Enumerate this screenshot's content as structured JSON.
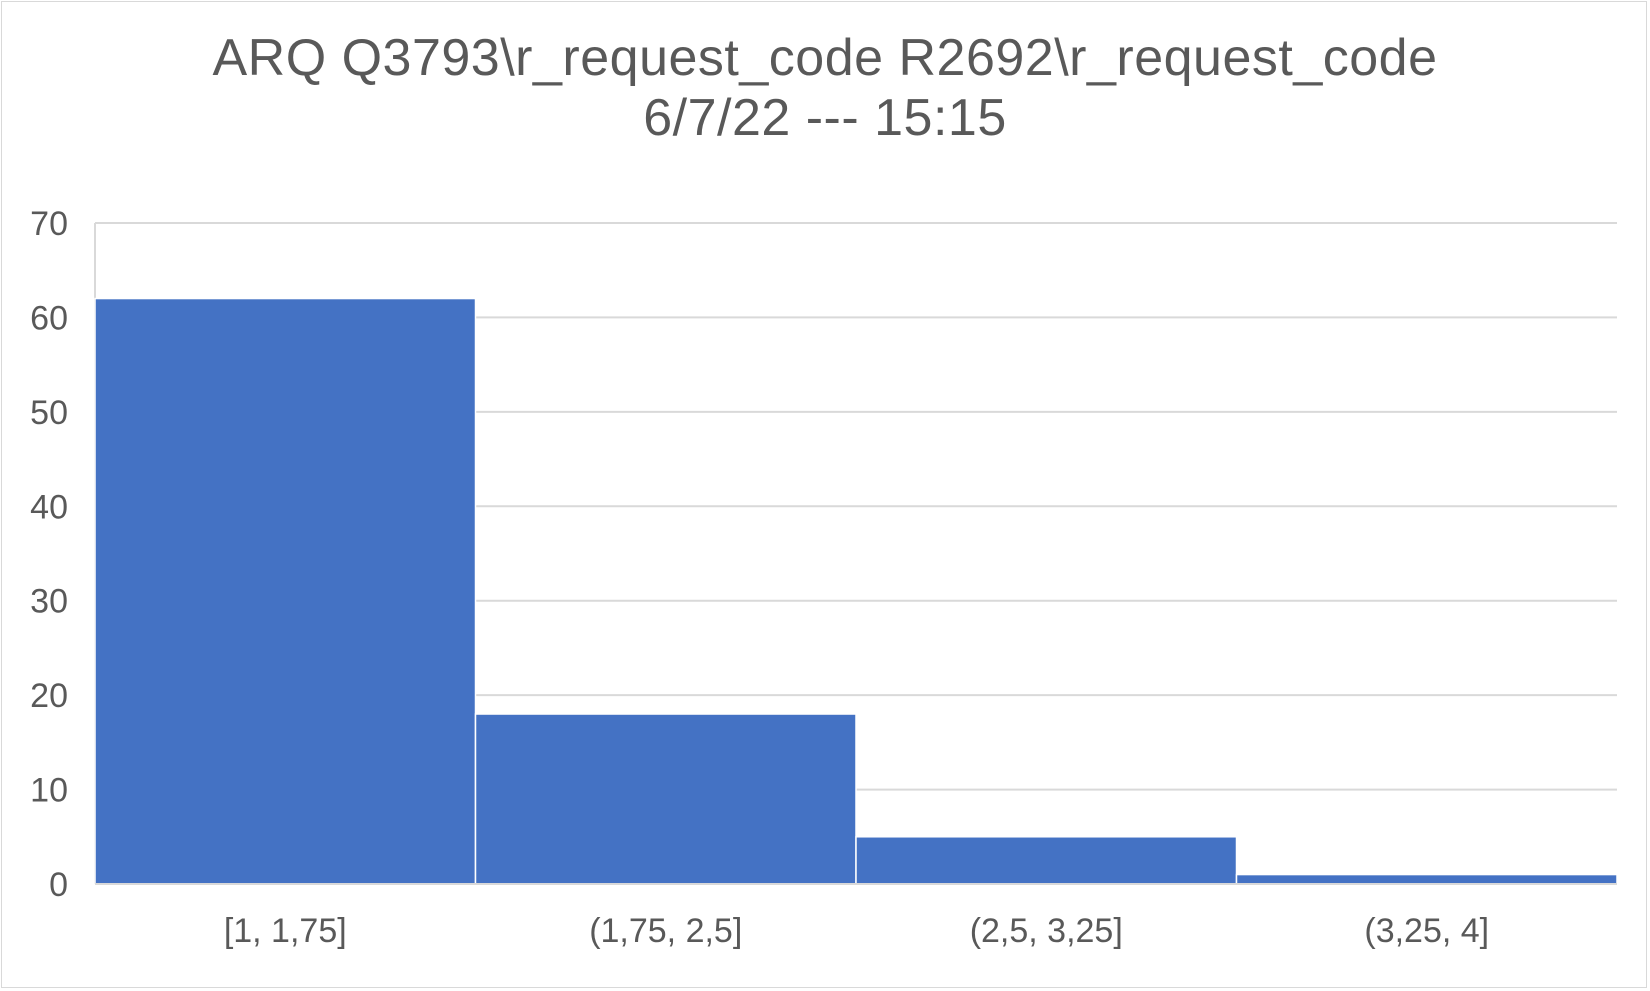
{
  "chart_data": {
    "type": "bar",
    "title": "ARQ Q3793\\r_request_code R2692\\r_request_code",
    "subtitle": "6/7/22 --- 15:15",
    "categories": [
      "[1, 1,75]",
      "(1,75, 2,5]",
      "(2,5, 3,25]",
      "(3,25, 4]"
    ],
    "values": [
      62,
      18,
      5,
      1
    ],
    "ylim": [
      0,
      70
    ],
    "yticks": [
      0,
      10,
      20,
      30,
      40,
      50,
      60,
      70
    ],
    "grid": true,
    "legend": "none",
    "colors": {
      "bar": "#4472C4",
      "grid": "#d9d9d9",
      "text": "#595959"
    }
  }
}
